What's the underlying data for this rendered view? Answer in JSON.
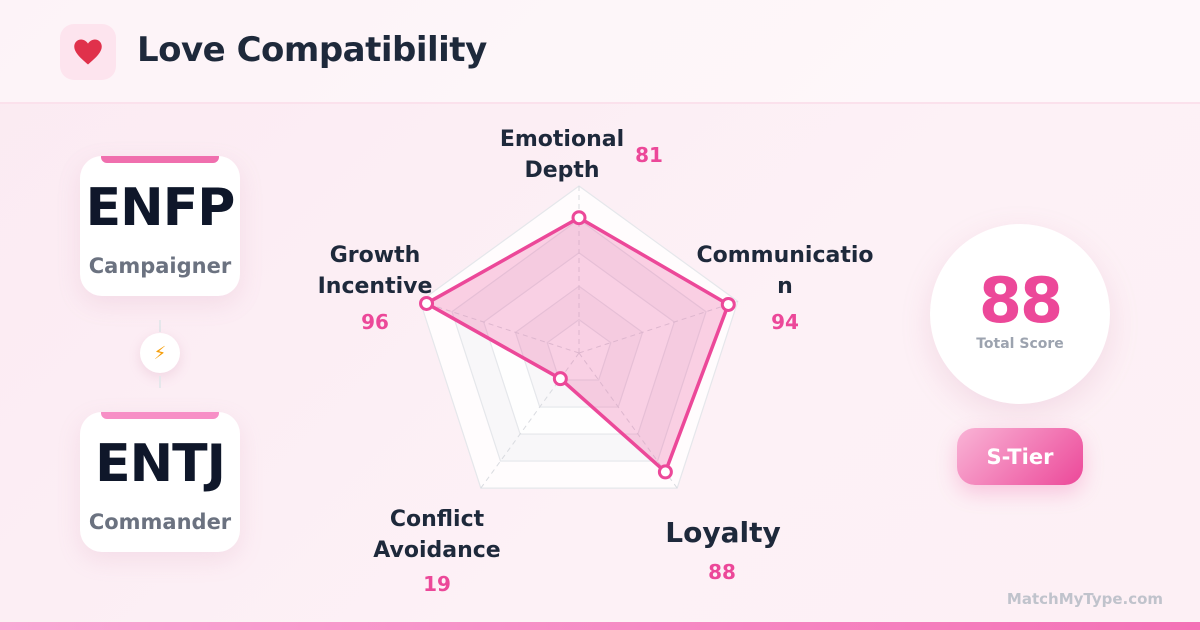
{
  "header": {
    "title": "Love Compatibility",
    "icon": "heart-icon"
  },
  "types": [
    {
      "code": "ENFP",
      "name": "Campaigner",
      "accent": "#f06fae"
    },
    {
      "code": "ENTJ",
      "name": "Commander",
      "accent": "#f78fc6"
    }
  ],
  "connector_icon": "lightning-icon",
  "score": {
    "value": "88",
    "label": "Total Score"
  },
  "tier": "S-Tier",
  "footer": "MatchMyType.com",
  "colors": {
    "accent": "#ec4899",
    "text": "#1e293b"
  },
  "chart_data": {
    "type": "radar",
    "axes": [
      "Emotional Depth",
      "Communication",
      "Loyalty",
      "Conflict Avoidance",
      "Growth Incentive"
    ],
    "axis_label_lines": [
      [
        "Emotional",
        "Depth"
      ],
      [
        "Communicatio",
        "n"
      ],
      [
        "Loyalty"
      ],
      [
        "Conflict",
        "Avoidance"
      ],
      [
        "Growth",
        "Incentive"
      ]
    ],
    "values": [
      81,
      94,
      88,
      19,
      96
    ],
    "range": [
      0,
      100
    ],
    "grid_levels": 5,
    "color": "#ec4899"
  }
}
